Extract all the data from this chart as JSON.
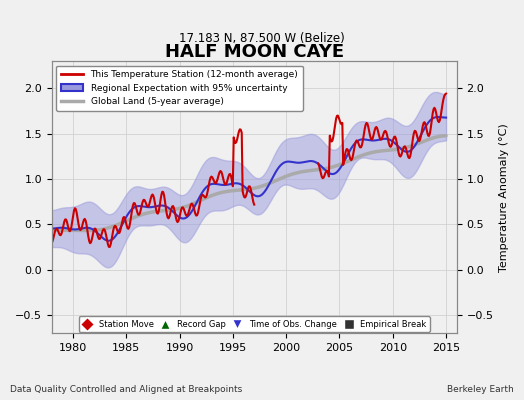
{
  "title": "HALF MOON CAYE",
  "subtitle": "17.183 N, 87.500 W (Belize)",
  "xlabel_left": "Data Quality Controlled and Aligned at Breakpoints",
  "xlabel_right": "Berkeley Earth",
  "ylabel": "Temperature Anomaly (°C)",
  "xlim": [
    1978,
    2016
  ],
  "ylim": [
    -0.7,
    2.3
  ],
  "yticks": [
    -0.5,
    0,
    0.5,
    1,
    1.5,
    2
  ],
  "xticks": [
    1980,
    1985,
    1990,
    1995,
    2000,
    2005,
    2010,
    2015
  ],
  "bg_color": "#f0f0f0",
  "plot_bg_color": "#f0f0f0",
  "grid_color": "#cccccc",
  "red_line_color": "#cc0000",
  "blue_line_color": "#3333cc",
  "blue_fill_color": "#9999dd",
  "gray_line_color": "#aaaaaa",
  "record_gap_x": 2001.5,
  "record_gap_y": -0.58,
  "legend_entries": [
    "This Temperature Station (12-month average)",
    "Regional Expectation with 95% uncertainty",
    "Global Land (5-year average)"
  ]
}
